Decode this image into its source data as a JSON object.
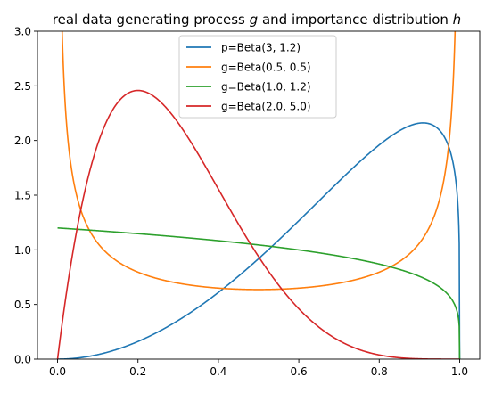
{
  "chart_data": {
    "type": "line",
    "title_parts": [
      {
        "text": "real data generating process "
      },
      {
        "text": "g",
        "italic": true
      },
      {
        "text": " and importance distribution "
      },
      {
        "text": "h",
        "italic": true
      }
    ],
    "xlim": [
      -0.05,
      1.05
    ],
    "ylim": [
      0,
      3.0
    ],
    "xticks": [
      "0.0",
      "0.2",
      "0.4",
      "0.6",
      "0.8",
      "1.0"
    ],
    "yticks": [
      "0.0",
      "0.5",
      "1.0",
      "1.5",
      "2.0",
      "2.5",
      "3.0"
    ],
    "grid": false,
    "legend_position": "upper-center",
    "series": [
      {
        "name": "p=Beta(3, 1.2)",
        "dist": {
          "a": 3.0,
          "b": 1.2
        },
        "color": "#1f77b4",
        "points": [
          [
            0.0,
            0.0
          ],
          [
            0.1,
            0.018
          ],
          [
            0.2,
            0.167
          ],
          [
            0.4,
            0.612
          ],
          [
            0.6,
            1.253
          ],
          [
            0.8,
            1.926
          ],
          [
            0.9,
            2.16
          ],
          [
            0.95,
            2.08
          ],
          [
            0.99,
            1.2
          ],
          [
            1.0,
            0.42
          ]
        ]
      },
      {
        "name": "g=Beta(0.5, 0.5)",
        "dist": {
          "a": 0.5,
          "b": 0.5
        },
        "color": "#ff7f0e",
        "points": [
          [
            0.01,
            3.2
          ],
          [
            0.1,
            1.061
          ],
          [
            0.2,
            0.796
          ],
          [
            0.3,
            0.695
          ],
          [
            0.5,
            0.637
          ],
          [
            0.7,
            0.695
          ],
          [
            0.8,
            0.796
          ],
          [
            0.9,
            1.061
          ],
          [
            0.99,
            3.2
          ]
        ]
      },
      {
        "name": "g=Beta(1.0, 1.2)",
        "dist": {
          "a": 1.0,
          "b": 1.2
        },
        "color": "#2ca02c",
        "points": [
          [
            0.0,
            1.2
          ],
          [
            0.2,
            1.147
          ],
          [
            0.4,
            1.083
          ],
          [
            0.6,
            1.002
          ],
          [
            0.8,
            0.871
          ],
          [
            0.9,
            0.758
          ],
          [
            1.0,
            0.12
          ]
        ]
      },
      {
        "name": "g=Beta(2.0, 5.0)",
        "dist": {
          "a": 2.0,
          "b": 5.0
        },
        "color": "#d62728",
        "points": [
          [
            0.0,
            0.0
          ],
          [
            0.1,
            1.968
          ],
          [
            0.2,
            2.458
          ],
          [
            0.3,
            2.161
          ],
          [
            0.4,
            1.555
          ],
          [
            0.5,
            0.938
          ],
          [
            0.6,
            0.461
          ],
          [
            0.8,
            0.048
          ],
          [
            1.0,
            0.0
          ]
        ]
      }
    ]
  }
}
